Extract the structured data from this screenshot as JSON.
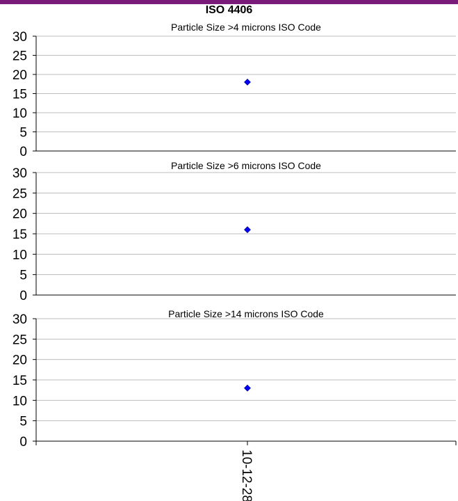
{
  "header": {
    "title": "ISO 4406",
    "accent_color": "#7a1a7a"
  },
  "chart_data": [
    {
      "type": "scatter",
      "title": "Particle Size >4 microns ISO Code",
      "x": [
        "10-12-28"
      ],
      "values": [
        18
      ],
      "ylim": [
        0,
        30
      ],
      "yticks": [
        0,
        5,
        10,
        15,
        20,
        25,
        30
      ],
      "grid": true,
      "marker": "diamond",
      "marker_color": "#0000ff"
    },
    {
      "type": "scatter",
      "title": "Particle Size >6 microns ISO Code",
      "x": [
        "10-12-28"
      ],
      "values": [
        16
      ],
      "ylim": [
        0,
        30
      ],
      "yticks": [
        0,
        5,
        10,
        15,
        20,
        25,
        30
      ],
      "grid": true,
      "marker": "diamond",
      "marker_color": "#0000ff"
    },
    {
      "type": "scatter",
      "title": "Particle Size >14 microns ISO Code",
      "x": [
        "10-12-28"
      ],
      "values": [
        13
      ],
      "ylim": [
        0,
        30
      ],
      "yticks": [
        0,
        5,
        10,
        15,
        20,
        25,
        30
      ],
      "grid": true,
      "marker": "diamond",
      "marker_color": "#0000ff"
    }
  ]
}
